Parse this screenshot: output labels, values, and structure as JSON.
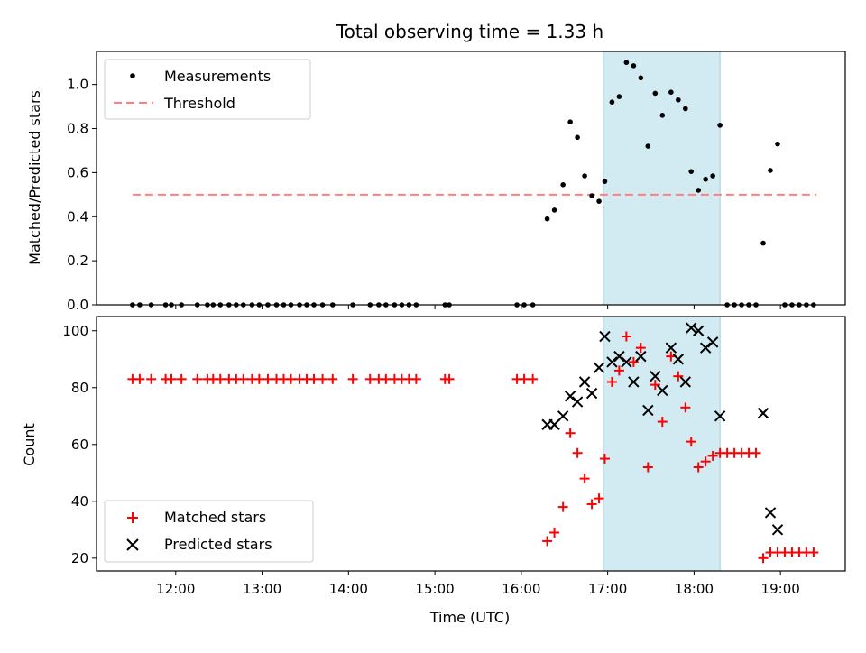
{
  "title": "Total observing time = 1.33 h",
  "chart_data": [
    {
      "type": "scatter",
      "ylabel": "Matched/Predicted stars",
      "xlabel": "",
      "ylim": [
        0,
        1.15
      ],
      "xlim": [
        "11:05",
        "19:45"
      ],
      "yticks": [
        "0.0",
        "0.2",
        "0.4",
        "0.6",
        "0.8",
        "1.0"
      ],
      "shaded_span": [
        "16:57",
        "18:18"
      ],
      "legend_position": "upper left",
      "threshold": {
        "name": "Threshold",
        "value": 0.5,
        "x_range": [
          "11:30",
          "19:25"
        ],
        "color": "#ff7f7f"
      },
      "series": [
        {
          "name": "Measurements",
          "color": "#000000",
          "marker": "dot",
          "x": [
            "11:30",
            "11:35",
            "11:43",
            "11:53",
            "11:57",
            "12:04",
            "12:15",
            "12:22",
            "12:26",
            "12:31",
            "12:37",
            "12:42",
            "12:47",
            "12:53",
            "12:58",
            "13:04",
            "13:10",
            "13:15",
            "13:20",
            "13:26",
            "13:31",
            "13:36",
            "13:42",
            "13:49",
            "14:03",
            "14:15",
            "14:21",
            "14:26",
            "14:32",
            "14:37",
            "14:42",
            "14:47",
            "15:07",
            "15:10",
            "15:57",
            "16:02",
            "16:08",
            "16:18",
            "16:23",
            "16:29",
            "16:34",
            "16:39",
            "16:44",
            "16:49",
            "16:54",
            "16:58",
            "17:03",
            "17:08",
            "17:13",
            "17:18",
            "17:23",
            "17:28",
            "17:33",
            "17:38",
            "17:44",
            "17:49",
            "17:54",
            "17:58",
            "18:03",
            "18:08",
            "18:13",
            "18:18",
            "18:23",
            "18:28",
            "18:33",
            "18:38",
            "18:43",
            "18:48",
            "18:53",
            "18:58",
            "19:03",
            "19:08",
            "19:13",
            "19:18",
            "19:23"
          ],
          "y": [
            0,
            0,
            0,
            0,
            0,
            0,
            0,
            0,
            0,
            0,
            0,
            0,
            0,
            0,
            0,
            0,
            0,
            0,
            0,
            0,
            0,
            0,
            0,
            0,
            0,
            0,
            0,
            0,
            0,
            0,
            0,
            0,
            0,
            0,
            0,
            0,
            0,
            0.39,
            0.43,
            0.545,
            0.83,
            0.76,
            0.585,
            0.495,
            0.47,
            0.56,
            0.92,
            0.945,
            1.1,
            1.085,
            1.03,
            0.72,
            0.96,
            0.86,
            0.965,
            0.93,
            0.89,
            0.605,
            0.52,
            0.57,
            0.585,
            0.815,
            0,
            0,
            0,
            0,
            0,
            0.28,
            0.61,
            0.73,
            0,
            0,
            0,
            0,
            0
          ]
        }
      ]
    },
    {
      "type": "scatter",
      "ylabel": "Count",
      "xlabel": "Time (UTC)",
      "ylim": [
        15.5,
        105
      ],
      "xlim": [
        "11:05",
        "19:45"
      ],
      "xticks": [
        "12:00",
        "13:00",
        "14:00",
        "15:00",
        "16:00",
        "17:00",
        "18:00",
        "19:00"
      ],
      "yticks": [
        "20",
        "40",
        "60",
        "80",
        "100"
      ],
      "shaded_span": [
        "16:57",
        "18:18"
      ],
      "legend_position": "lower left",
      "series": [
        {
          "name": "Matched stars",
          "color": "#ff0000",
          "marker": "plus",
          "x": [
            "11:30",
            "11:35",
            "11:43",
            "11:53",
            "11:57",
            "12:04",
            "12:15",
            "12:22",
            "12:26",
            "12:31",
            "12:37",
            "12:42",
            "12:47",
            "12:53",
            "12:58",
            "13:04",
            "13:10",
            "13:15",
            "13:20",
            "13:26",
            "13:31",
            "13:36",
            "13:42",
            "13:49",
            "14:03",
            "14:15",
            "14:21",
            "14:26",
            "14:32",
            "14:37",
            "14:42",
            "14:47",
            "15:07",
            "15:10",
            "15:57",
            "16:02",
            "16:08",
            "16:18",
            "16:23",
            "16:29",
            "16:34",
            "16:39",
            "16:44",
            "16:49",
            "16:54",
            "16:58",
            "17:03",
            "17:08",
            "17:13",
            "17:18",
            "17:23",
            "17:28",
            "17:33",
            "17:38",
            "17:44",
            "17:49",
            "17:54",
            "17:58",
            "18:03",
            "18:08",
            "18:13",
            "18:18",
            "18:23",
            "18:28",
            "18:33",
            "18:38",
            "18:43",
            "18:48",
            "18:53",
            "18:58",
            "19:03",
            "19:08",
            "19:13",
            "19:18",
            "19:23"
          ],
          "y": [
            83,
            83,
            83,
            83,
            83,
            83,
            83,
            83,
            83,
            83,
            83,
            83,
            83,
            83,
            83,
            83,
            83,
            83,
            83,
            83,
            83,
            83,
            83,
            83,
            83,
            83,
            83,
            83,
            83,
            83,
            83,
            83,
            83,
            83,
            83,
            83,
            83,
            26,
            29,
            38,
            64,
            57,
            48,
            39,
            41,
            55,
            82,
            86,
            98,
            89,
            94,
            52,
            81,
            68,
            91,
            84,
            73,
            61,
            52,
            54,
            56,
            57,
            57,
            57,
            57,
            57,
            57,
            20,
            22,
            22,
            22,
            22,
            22,
            22,
            22
          ]
        },
        {
          "name": "Predicted stars",
          "color": "#000000",
          "marker": "x",
          "x": [
            "16:18",
            "16:23",
            "16:29",
            "16:34",
            "16:39",
            "16:44",
            "16:49",
            "16:54",
            "16:58",
            "17:03",
            "17:08",
            "17:13",
            "17:18",
            "17:23",
            "17:28",
            "17:33",
            "17:38",
            "17:44",
            "17:49",
            "17:54",
            "17:58",
            "18:03",
            "18:08",
            "18:13",
            "18:18",
            "18:48",
            "18:53",
            "18:58"
          ],
          "y": [
            67,
            67,
            70,
            77,
            75,
            82,
            78,
            87,
            98,
            89,
            91,
            89,
            82,
            91,
            72,
            84,
            79,
            94,
            90,
            82,
            101,
            100,
            94,
            96,
            70,
            71,
            36,
            30
          ]
        }
      ]
    }
  ]
}
